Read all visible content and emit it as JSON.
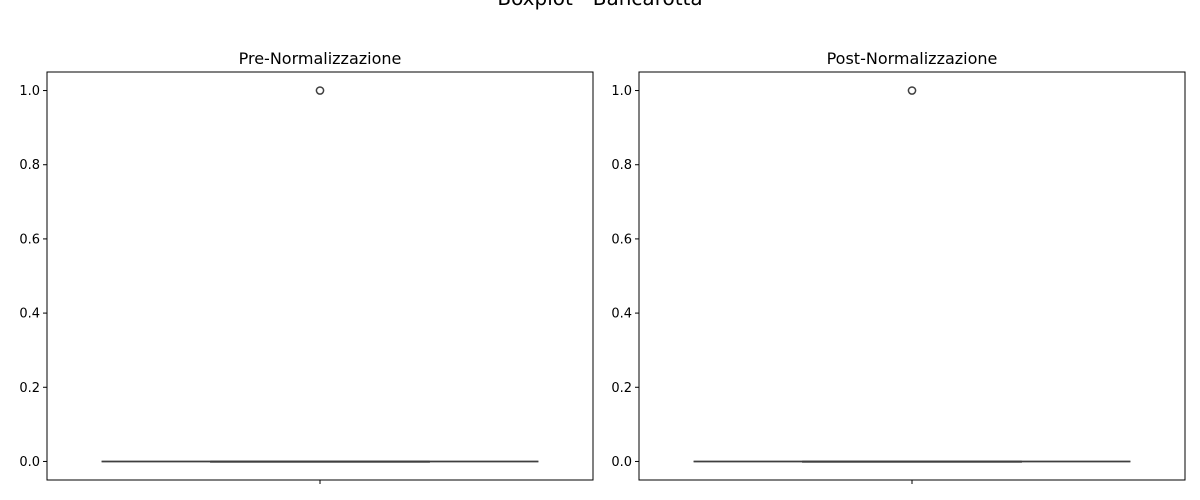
{
  "figure": {
    "suptitle": "Boxplot - Bancarotta"
  },
  "chart_data": [
    {
      "type": "box",
      "title": "Pre-Normalizzazione",
      "xlabel": "",
      "ylabel": "",
      "ylim": [
        -0.05,
        1.05
      ],
      "yticks": [
        "0.0",
        "0.2",
        "0.4",
        "0.6",
        "0.8",
        "1.0"
      ],
      "grid": false,
      "boxes": [
        {
          "q1": 0,
          "median": 0,
          "q3": 0,
          "whisker_low": 0,
          "whisker_high": 0,
          "outliers": [
            1.0
          ]
        }
      ]
    },
    {
      "type": "box",
      "title": "Post-Normalizzazione",
      "xlabel": "",
      "ylabel": "",
      "ylim": [
        -0.05,
        1.05
      ],
      "yticks": [
        "0.0",
        "0.2",
        "0.4",
        "0.6",
        "0.8",
        "1.0"
      ],
      "grid": false,
      "boxes": [
        {
          "q1": 0,
          "median": 0,
          "q3": 0,
          "whisker_low": 0,
          "whisker_high": 0,
          "outliers": [
            1.0
          ]
        }
      ]
    }
  ]
}
